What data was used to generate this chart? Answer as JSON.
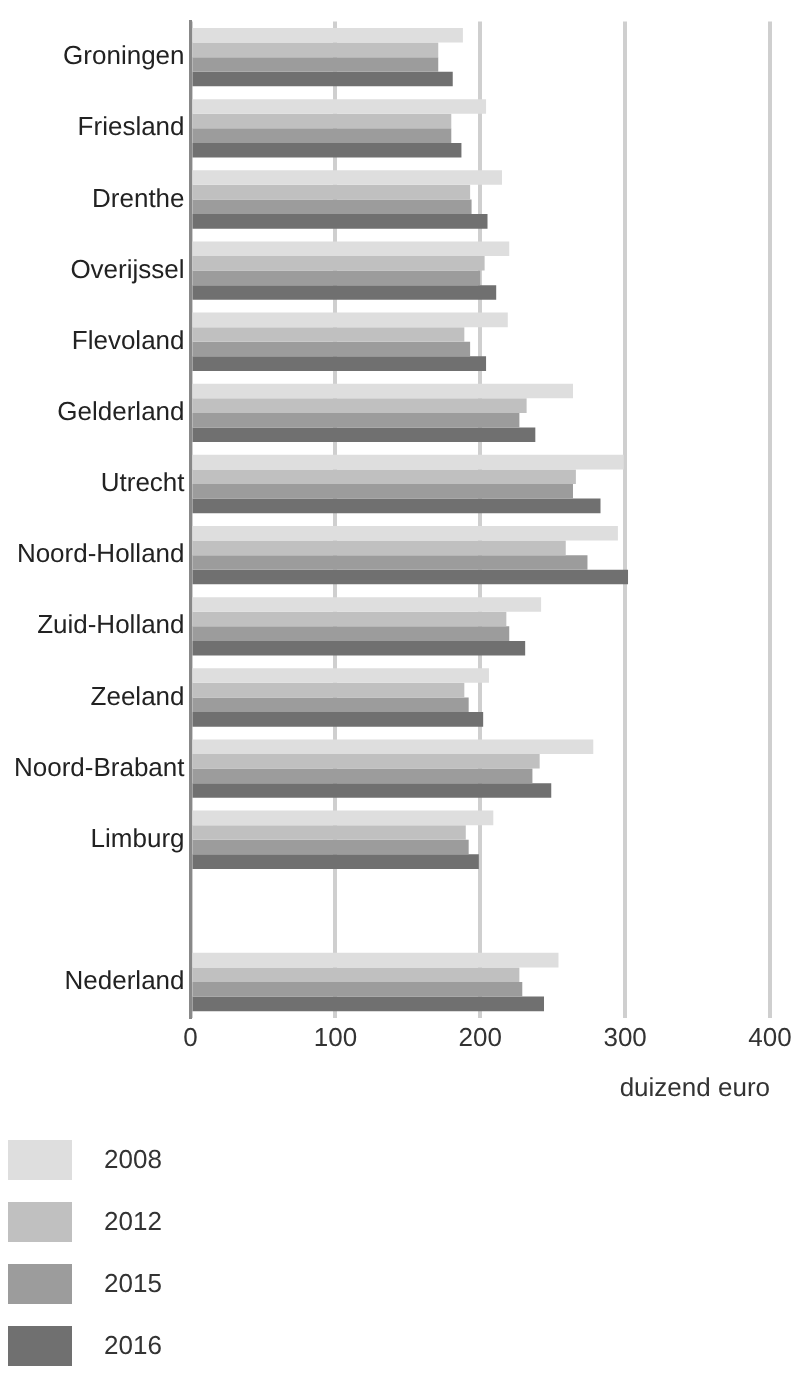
{
  "chart_data": {
    "type": "bar",
    "orientation": "horizontal",
    "xlabel": "duizend euro",
    "categories": [
      "Groningen",
      "Friesland",
      "Drenthe",
      "Overijssel",
      "Flevoland",
      "Gelderland",
      "Utrecht",
      "Noord-Holland",
      "Zuid-Holland",
      "Zeeland",
      "Noord-Brabant",
      "Limburg",
      null,
      "Nederland"
    ],
    "series": [
      {
        "name": "2008",
        "color": "#dedede",
        "values": [
          188,
          204,
          215,
          220,
          219,
          264,
          299,
          295,
          242,
          206,
          278,
          209,
          null,
          254
        ]
      },
      {
        "name": "2012",
        "color": "#c0c0c0",
        "values": [
          171,
          180,
          193,
          203,
          189,
          232,
          266,
          259,
          218,
          189,
          241,
          190,
          null,
          227
        ]
      },
      {
        "name": "2015",
        "color": "#9c9c9c",
        "values": [
          171,
          180,
          194,
          200,
          193,
          227,
          264,
          274,
          220,
          192,
          236,
          192,
          null,
          229
        ]
      },
      {
        "name": "2016",
        "color": "#707070",
        "values": [
          181,
          187,
          205,
          211,
          204,
          238,
          283,
          302,
          231,
          202,
          249,
          199,
          null,
          244
        ]
      }
    ],
    "xlim": [
      0,
      400
    ],
    "xticks": [
      0,
      100,
      200,
      300,
      400
    ],
    "grid": "x",
    "legend": "bottom left"
  }
}
